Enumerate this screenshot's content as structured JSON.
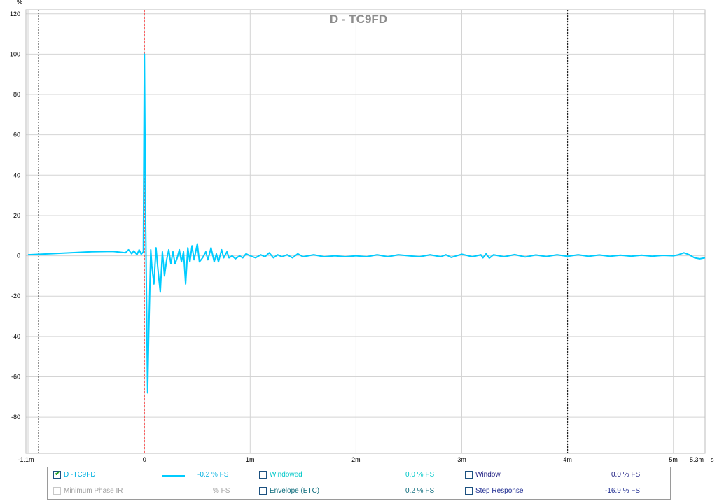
{
  "chart_data": {
    "type": "line",
    "title": "D - TC9FD",
    "y_unit": "%",
    "xlabel": "s",
    "x_unit_suffix": "s",
    "xlim": [
      -0.00112,
      0.0053
    ],
    "ylim": [
      -98,
      122
    ],
    "x_ticks": [
      {
        "value": -0.0011,
        "label": "-1.1m"
      },
      {
        "value": 0,
        "label": "0"
      },
      {
        "value": 0.001,
        "label": "1m"
      },
      {
        "value": 0.002,
        "label": "2m"
      },
      {
        "value": 0.003,
        "label": "3m"
      },
      {
        "value": 0.004,
        "label": "4m"
      },
      {
        "value": 0.005,
        "label": "5m"
      },
      {
        "value": 0.0053,
        "label": "5.3m"
      }
    ],
    "y_ticks": [
      120,
      100,
      80,
      60,
      40,
      20,
      0,
      -20,
      -40,
      -60,
      -80
    ],
    "grid": true,
    "markers": [
      {
        "x": -0.001,
        "style": "black-dotted"
      },
      {
        "x": 0,
        "style": "red-dashed"
      },
      {
        "x": 0.004,
        "style": "black-dotted"
      }
    ],
    "series": [
      {
        "name": "D -TC9FD",
        "color": "#00ccff",
        "x": [
          -0.0011,
          -0.0009,
          -0.0007,
          -0.0005,
          -0.0003,
          -0.00018,
          -0.00015,
          -0.00012,
          -0.0001,
          -7e-05,
          -5e-05,
          -3e-05,
          -1e-05,
          0,
          1e-05,
          3e-05,
          4e-05,
          6e-05,
          7e-05,
          9e-05,
          0.00011,
          0.00013,
          0.00015,
          0.00017,
          0.00019,
          0.00021,
          0.00023,
          0.00025,
          0.00027,
          0.00029,
          0.00031,
          0.00033,
          0.00035,
          0.00037,
          0.00039,
          0.00041,
          0.00043,
          0.00045,
          0.00047,
          0.0005,
          0.00052,
          0.00055,
          0.00058,
          0.0006,
          0.00063,
          0.00066,
          0.00068,
          0.0007,
          0.00073,
          0.00075,
          0.00078,
          0.0008,
          0.00083,
          0.00086,
          0.0009,
          0.00093,
          0.00096,
          0.001,
          0.00105,
          0.0011,
          0.00114,
          0.00118,
          0.00122,
          0.00126,
          0.0013,
          0.00135,
          0.0014,
          0.00145,
          0.0015,
          0.0016,
          0.0017,
          0.0018,
          0.0019,
          0.002,
          0.0021,
          0.0022,
          0.0023,
          0.0024,
          0.0025,
          0.0026,
          0.0027,
          0.0028,
          0.00285,
          0.0029,
          0.003,
          0.0031,
          0.00318,
          0.0032,
          0.00323,
          0.00326,
          0.0033,
          0.0034,
          0.0035,
          0.0036,
          0.0037,
          0.0038,
          0.0039,
          0.004,
          0.0041,
          0.0042,
          0.0043,
          0.0044,
          0.0045,
          0.0046,
          0.0047,
          0.0048,
          0.0049,
          0.005,
          0.00505,
          0.0051,
          0.00515,
          0.0052,
          0.00525,
          0.0053
        ],
        "y": [
          0.5,
          1,
          1.5,
          2,
          2.2,
          1.5,
          3,
          1,
          2.5,
          0.5,
          3,
          0.8,
          2,
          100,
          25,
          -68,
          -40,
          3,
          -5,
          -14,
          4,
          -8,
          -18,
          2,
          -10,
          -2,
          3,
          -4,
          2,
          -4,
          -1,
          3,
          -3,
          2,
          -14,
          4,
          -3,
          5,
          -2,
          6,
          -3,
          -1,
          2,
          -2,
          4,
          -3,
          1,
          -3,
          3,
          -1,
          2,
          -1,
          0,
          -1.5,
          0,
          -1,
          1,
          0,
          -1,
          0.5,
          -0.5,
          1.5,
          -1,
          0.5,
          -0.5,
          0.5,
          -1,
          1,
          -0.5,
          0.5,
          -0.5,
          0,
          -0.5,
          0,
          -0.5,
          0.5,
          -0.5,
          0.5,
          0,
          -0.5,
          0.5,
          -0.5,
          0.5,
          -0.8,
          0.8,
          -0.5,
          0.5,
          -1,
          1,
          -1.2,
          0.5,
          -0.5,
          0.6,
          -0.6,
          0.4,
          -0.4,
          0.5,
          -0.3,
          0.5,
          -0.3,
          0.4,
          -0.3,
          0.3,
          -0.2,
          0.3,
          -0.2,
          0.2,
          0,
          0.5,
          1.5,
          0.5,
          -1,
          -1.5,
          -1
        ]
      }
    ]
  },
  "legend": {
    "rows": [
      [
        {
          "label": "D -TC9FD",
          "value": "-0.2 % FS",
          "checked": true,
          "enabled": true,
          "label_color": "#00b0e0",
          "value_color": "#00b0e0",
          "swatch": true
        },
        {
          "label": "Windowed",
          "value": "0.0 % FS",
          "checked": false,
          "enabled": true,
          "label_color": "#00c8c8",
          "value_color": "#00c8c8"
        },
        {
          "label": "Window",
          "value": "0.0 % FS",
          "checked": false,
          "enabled": true,
          "label_color": "#1c1c80",
          "value_color": "#1c1c80"
        }
      ],
      [
        {
          "label": "Minimum Phase IR",
          "value": "% FS",
          "checked": false,
          "enabled": false,
          "label_color": "#a0a0a0",
          "value_color": "#a0a0a0"
        },
        {
          "label": "Envelope (ETC)",
          "value": "0.2 % FS",
          "checked": false,
          "enabled": true,
          "label_color": "#0a6a7a",
          "value_color": "#0a6a7a"
        },
        {
          "label": "Step Response",
          "value": "-16.9 % FS",
          "checked": false,
          "enabled": true,
          "label_color": "#1c2a90",
          "value_color": "#1c2a90"
        }
      ]
    ]
  }
}
